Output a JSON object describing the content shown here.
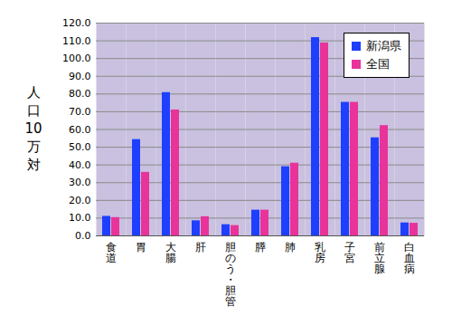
{
  "chart_data": {
    "type": "bar",
    "y_label": "人口10万対",
    "categories": [
      "食道",
      "胃",
      "大腸",
      "肝",
      "胆のう・胆管",
      "膵",
      "肺",
      "乳房",
      "子宮",
      "前立腺",
      "白血病"
    ],
    "series": [
      {
        "name": "新潟県",
        "color": "#1f3fff",
        "values": [
          11.0,
          54.3,
          80.8,
          8.5,
          6.3,
          14.5,
          39.0,
          111.8,
          75.3,
          55.3,
          7.3
        ]
      },
      {
        "name": "全国",
        "color": "#e8339a",
        "values": [
          10.3,
          35.8,
          71.0,
          10.8,
          5.8,
          14.5,
          41.0,
          108.8,
          75.3,
          62.2,
          7.1
        ]
      }
    ],
    "ylim": [
      0,
      120
    ],
    "yticks": [
      {
        "value": 0,
        "label": "0.0"
      },
      {
        "value": 10,
        "label": "10.0"
      },
      {
        "value": 20,
        "label": "20.0"
      },
      {
        "value": 30,
        "label": "30.0"
      },
      {
        "value": 40,
        "label": "40.0"
      },
      {
        "value": 50,
        "label": "50.0"
      },
      {
        "value": 60,
        "label": "60.0"
      },
      {
        "value": 70,
        "label": "70.0"
      },
      {
        "value": 80,
        "label": "80.0"
      },
      {
        "value": 90,
        "label": "90.0"
      },
      {
        "value": 100,
        "label": "100.0"
      },
      {
        "value": 110,
        "label": "110.0"
      },
      {
        "value": 120,
        "label": "120.0"
      }
    ],
    "grid": true,
    "legend": "top-right"
  }
}
